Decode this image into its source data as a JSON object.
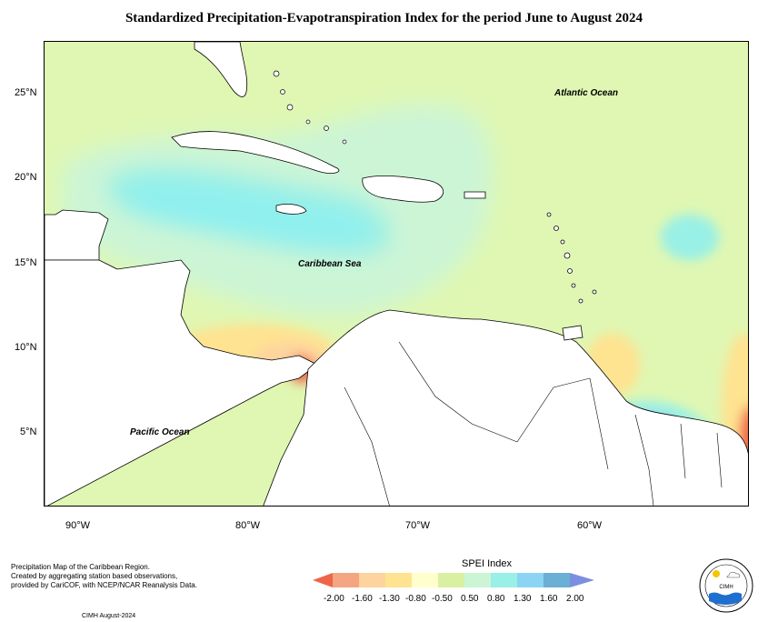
{
  "title": "Standardized Precipitation-Evapotranspiration Index for the period June to August 2024",
  "axes": {
    "lat_labels": [
      "25°N",
      "20°N",
      "15°N",
      "10°N",
      "5°N"
    ],
    "lon_labels": [
      "90°W",
      "80°W",
      "70°W",
      "60°W"
    ]
  },
  "places": {
    "atlantic": "Atlantic Ocean",
    "caribbean": "Caribbean Sea",
    "pacific": "Pacific Ocean"
  },
  "caption": {
    "line1": "Precipitation Map of the Caribbean Region.",
    "line2": "Created by aggregating station based observations,",
    "line3": "provided by CariCOF, with NCEP/NCAR Reanalysis Data.",
    "credit": "CIMH August-2024"
  },
  "legend": {
    "title": "SPEI Index",
    "labels": [
      "-2.00",
      "-1.60",
      "-1.30",
      "-0.80",
      "-0.50",
      "0.50",
      "0.80",
      "1.30",
      "1.60",
      "2.00"
    ],
    "colors": [
      "#ef6548",
      "#f4a582",
      "#fdd49e",
      "#fee391",
      "#ffffcc",
      "#d9f0a3",
      "#ccf5d6",
      "#99f0e6",
      "#8cd4f4",
      "#6baed6",
      "#7b8fe0"
    ]
  },
  "logo": {
    "text": "CIMH"
  }
}
